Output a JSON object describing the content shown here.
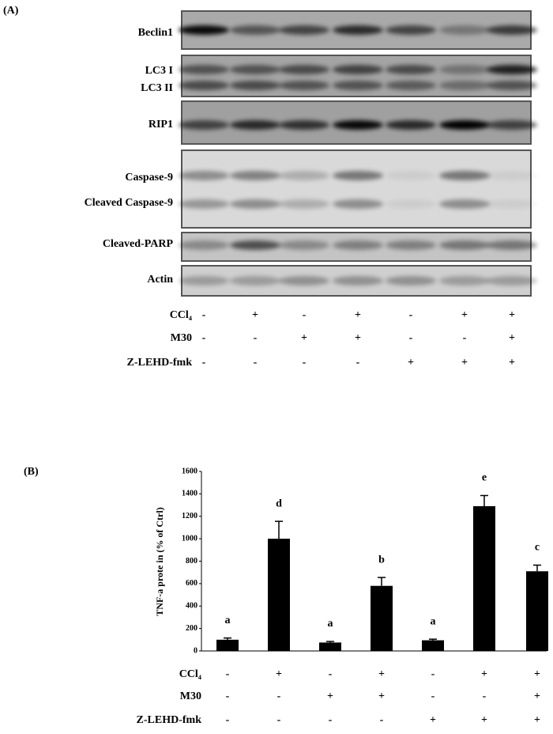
{
  "blot": {
    "label": "(A)",
    "proteins": [
      "Beclin1",
      "LC3 I",
      "LC3 II",
      "RIP1",
      "Caspase-9",
      "Cleaved Caspase-9",
      "Cleaved-PARP",
      "Actin"
    ],
    "treatments": [
      {
        "name": "CCl₄",
        "signs": [
          "-",
          "+",
          "-",
          "+",
          "-",
          "+",
          "+"
        ]
      },
      {
        "name": "M30",
        "signs": [
          "-",
          "-",
          "+",
          "+",
          "-",
          "-",
          "+"
        ]
      },
      {
        "name": "Z-LEHD-fmk",
        "signs": [
          "-",
          "-",
          "-",
          "-",
          "+",
          "+",
          "+"
        ]
      }
    ]
  },
  "chart_data": {
    "type": "bar",
    "panel_label": "(B)",
    "ylabel": "TNF-a prote in (% of Ctrl)",
    "series": [
      {
        "values": [
          100,
          1000,
          75,
          580,
          95,
          1290,
          710
        ],
        "errors": [
          15,
          155,
          10,
          75,
          10,
          95,
          55
        ],
        "color": "#000000"
      }
    ],
    "annotations": [
      "a",
      "d",
      "a",
      "b",
      "a",
      "e",
      "c"
    ],
    "treatments": [
      {
        "name": "CCl₄",
        "signs": [
          "-",
          "+",
          "-",
          "+",
          "-",
          "+",
          "+"
        ]
      },
      {
        "name": "M30",
        "signs": [
          "-",
          "-",
          "+",
          "+",
          "-",
          "-",
          "+"
        ]
      },
      {
        "name": "Z-LEHD-fmk",
        "signs": [
          "-",
          "-",
          "-",
          "-",
          "+",
          "+",
          "+"
        ]
      }
    ],
    "ylim": [
      0,
      1600
    ],
    "yticks": [
      0,
      200,
      400,
      600,
      800,
      1000,
      1200,
      1400,
      1600
    ]
  }
}
